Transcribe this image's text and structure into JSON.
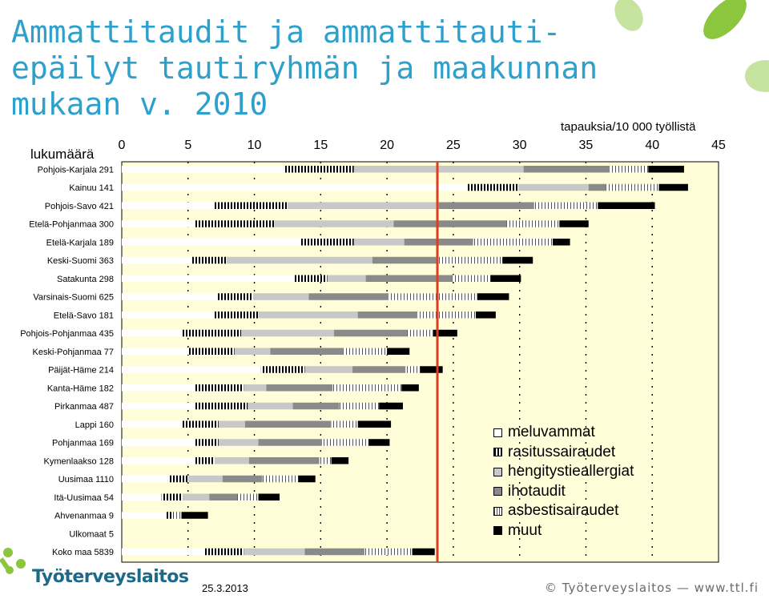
{
  "slide": {
    "title_lines": [
      "Ammattitaudit ja ammattitauti-",
      "epäilyt tautiryhmän ja maakunnan",
      "mukaan v. 2010"
    ],
    "count_header": "lukumäärä",
    "footer_org": "Työterveyslaitos",
    "footer_date": "25.3.2013",
    "footer_copyright": "© Työterveyslaitos — www.ttl.fi"
  },
  "colors": {
    "title": "#2ea0cc",
    "plot_background": "#fffed8",
    "accent_line": "#e03c1e",
    "brand_green": "#8cc63f",
    "brand_blue": "#1b6a8a"
  },
  "chart_data": {
    "type": "bar",
    "orientation": "horizontal",
    "stacked": true,
    "x_unit_label": "tapauksia/10 000 työllistä",
    "xlim": [
      0,
      45
    ],
    "xticks": [
      0,
      5,
      10,
      15,
      20,
      25,
      30,
      35,
      40,
      45
    ],
    "grid": true,
    "legend_position": "bottom-right",
    "reference_line_x": 23.8,
    "categories": [
      "Pohjois-Karjala 291",
      "Kainuu 141",
      "Pohjois-Savo 421",
      "Etelä-Pohjanmaa 300",
      "Etelä-Karjala 189",
      "Keski-Suomi 363",
      "Satakunta 298",
      "Varsinais-Suomi 625",
      "Etelä-Savo 181",
      "Pohjois-Pohjanmaa 435",
      "Keski-Pohjanmaa 77",
      "Päijät-Häme 214",
      "Kanta-Häme 182",
      "Pirkanmaa 487",
      "Lappi 160",
      "Pohjanmaa 169",
      "Kymenlaakso 128",
      "Uusimaa 1110",
      "Itä-Uusimaa 54",
      "Ahvenanmaa 9",
      "Ulkomaat 5",
      "Koko maa 5839"
    ],
    "series": [
      {
        "name": "meluvammat",
        "pattern": "white",
        "values": [
          12.2,
          26.0,
          7.0,
          5.5,
          13.5,
          5.2,
          13.0,
          7.2,
          7.0,
          4.5,
          5.0,
          10.5,
          5.5,
          5.5,
          4.5,
          5.5,
          5.5,
          3.5,
          3.0,
          3.3,
          0,
          6.2
        ]
      },
      {
        "name": "rasitussairaudet",
        "pattern": "vertical-hatch",
        "values": [
          5.3,
          3.9,
          5.5,
          6.0,
          4.0,
          2.7,
          2.5,
          2.7,
          3.3,
          4.5,
          3.5,
          3.3,
          3.7,
          4.0,
          2.8,
          1.8,
          1.5,
          1.5,
          1.6,
          0.6,
          0,
          3.0
        ]
      },
      {
        "name": "hengitystieallergiat",
        "pattern": "light-gray",
        "values": [
          12.8,
          5.3,
          11.4,
          9.0,
          3.8,
          11.0,
          2.9,
          4.2,
          7.5,
          7.0,
          2.7,
          3.6,
          1.7,
          3.4,
          2.0,
          3.0,
          2.6,
          2.6,
          2.0,
          0,
          0,
          4.6
        ]
      },
      {
        "name": "ihotaudit",
        "pattern": "dark-gray",
        "values": [
          6.5,
          1.3,
          7.2,
          8.5,
          5.2,
          4.8,
          6.5,
          6.0,
          4.5,
          5.5,
          5.5,
          4.0,
          5.0,
          3.5,
          6.5,
          4.8,
          5.3,
          3.0,
          2.1,
          0,
          0,
          4.5
        ]
      },
      {
        "name": "asbestisairaudet",
        "pattern": "striped",
        "values": [
          2.9,
          4.0,
          4.8,
          4.0,
          6.0,
          5.0,
          2.9,
          6.7,
          4.4,
          2.0,
          3.3,
          1.1,
          5.2,
          3.0,
          2.0,
          3.5,
          0.9,
          2.7,
          1.6,
          0.6,
          0,
          3.6
        ]
      },
      {
        "name": "muut",
        "pattern": "black",
        "values": [
          2.7,
          2.2,
          4.3,
          2.2,
          1.3,
          2.3,
          2.3,
          2.4,
          1.5,
          1.8,
          1.7,
          1.7,
          1.3,
          1.8,
          2.5,
          1.6,
          1.3,
          1.3,
          1.6,
          2.0,
          0,
          1.7
        ]
      }
    ]
  }
}
